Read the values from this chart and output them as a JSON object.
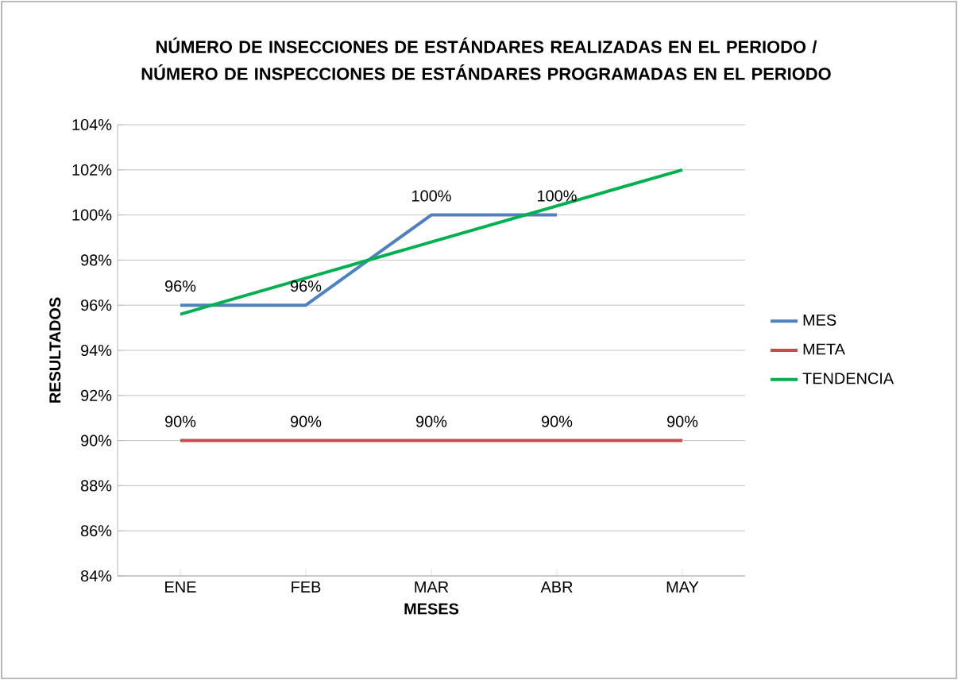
{
  "chart_data": {
    "type": "line",
    "title": "NÚMERO DE INSECCIONES DE ESTÁNDARES REALIZADAS EN EL PERIODO / NÚMERO DE INSPECCIONES DE ESTÁNDARES PROGRAMADAS EN EL PERIODO",
    "xlabel": "MESES",
    "ylabel": "RESULTADOS",
    "categories": [
      "ENE",
      "FEB",
      "MAR",
      "ABR",
      "MAY"
    ],
    "series": [
      {
        "name": "MES",
        "color": "#4f81bd",
        "values": [
          96,
          96,
          100,
          100,
          null
        ],
        "value_labels": [
          "96%",
          "96%",
          "100%",
          "100%",
          null
        ]
      },
      {
        "name": "META",
        "color": "#c0504d",
        "values": [
          90,
          90,
          90,
          90,
          90
        ],
        "value_labels": [
          "90%",
          "90%",
          "90%",
          "90%",
          "90%"
        ]
      },
      {
        "name": "TENDENCIA",
        "color": "#00b050",
        "values": [
          95.6,
          97.2,
          98.8,
          100.4,
          102
        ]
      }
    ],
    "ylim": [
      84,
      104
    ],
    "yticks": [
      {
        "value": 84,
        "label": "84%"
      },
      {
        "value": 86,
        "label": "86%"
      },
      {
        "value": 88,
        "label": "88%"
      },
      {
        "value": 90,
        "label": "90%"
      },
      {
        "value": 92,
        "label": "92%"
      },
      {
        "value": 94,
        "label": "94%"
      },
      {
        "value": 96,
        "label": "96%"
      },
      {
        "value": 98,
        "label": "98%"
      },
      {
        "value": 100,
        "label": "100%"
      },
      {
        "value": 102,
        "label": "102%"
      },
      {
        "value": 104,
        "label": "104%"
      }
    ],
    "grid": "y",
    "legend": "right"
  }
}
